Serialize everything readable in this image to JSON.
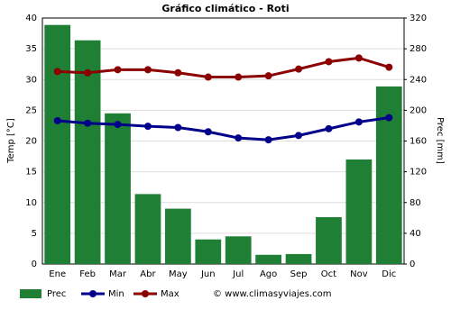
{
  "chart_data": {
    "type": "bar-line",
    "title": "Gráfico climático - Roti",
    "categories": [
      "Ene",
      "Feb",
      "Mar",
      "Abr",
      "May",
      "Jun",
      "Jul",
      "Ago",
      "Sep",
      "Oct",
      "Nov",
      "Dic"
    ],
    "series": [
      {
        "name": "Prec",
        "type": "bar",
        "axis": "y2",
        "color": "#1f7f35",
        "values": [
          311,
          291,
          196,
          91,
          72,
          32,
          36,
          12,
          13,
          61,
          136,
          231
        ]
      },
      {
        "name": "Min",
        "type": "line",
        "color": "#00008b",
        "values": [
          23.3,
          22.9,
          22.7,
          22.4,
          22.2,
          21.5,
          20.5,
          20.2,
          20.9,
          22.0,
          23.1,
          23.8
        ]
      },
      {
        "name": "Max",
        "type": "line",
        "color": "#8b0000",
        "values": [
          31.3,
          31.1,
          31.6,
          31.6,
          31.1,
          30.4,
          30.4,
          30.6,
          31.7,
          32.9,
          33.5,
          32.0
        ]
      }
    ],
    "ylabel": "Temp [°C]",
    "y2label": "Prec [mm]",
    "ylim": [
      0,
      40
    ],
    "yticks": [
      0,
      5,
      10,
      15,
      20,
      25,
      30,
      35,
      40
    ],
    "y2lim": [
      0,
      320
    ],
    "y2ticks": [
      0,
      40,
      80,
      120,
      160,
      200,
      240,
      280,
      320
    ],
    "grid": true,
    "legend": "bottom",
    "watermark": "© www.climasyviajes.com"
  }
}
